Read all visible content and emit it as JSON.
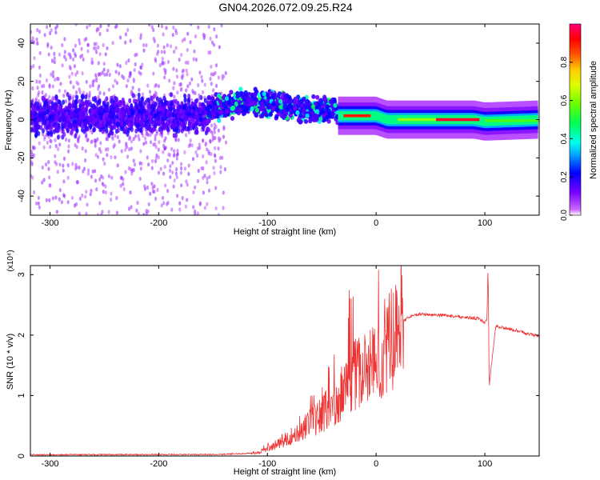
{
  "title": "GN04.2026.072.09.25.R24",
  "chart_data": [
    {
      "type": "heatmap",
      "description_of_fill": "spectrogram of frequency vs straight-line height",
      "xlabel": "Height of straight line (km)",
      "ylabel": "Frequency (Hz)",
      "xlim": [
        -318,
        150
      ],
      "ylim": [
        -50,
        50
      ],
      "xticks": [
        -300,
        -200,
        -100,
        0,
        100
      ],
      "yticks": [
        -40,
        -20,
        0,
        20,
        40
      ],
      "colorbar": {
        "label": "Normalized spectral amplitude",
        "range": [
          0,
          1
        ],
        "ticks": [
          0,
          0.2,
          0.4,
          0.6,
          0.8
        ],
        "tick_labels": [
          "0.0",
          "0.2",
          "0.4",
          "0.6",
          "0.8"
        ]
      },
      "ridge": {
        "x": [
          -155,
          -120,
          -100,
          -80,
          -60,
          -40,
          -35,
          -20,
          0,
          10,
          50,
          90,
          100,
          150
        ],
        "y": [
          5,
          9,
          8,
          7,
          5,
          5,
          2,
          2,
          2,
          0,
          0,
          0,
          -1,
          0
        ]
      }
    },
    {
      "type": "line",
      "xlabel": "Height of straight line (km)",
      "ylabel": "SNR (10 * v/v)",
      "y_multiplier": "(x10^4)",
      "xlim": [
        -318,
        150
      ],
      "ylim": [
        0,
        3.15
      ],
      "xticks": [
        -300,
        -200,
        -100,
        0,
        100
      ],
      "yticks": [
        0,
        1,
        2,
        3
      ],
      "color": "#ee3333",
      "envelope": {
        "x": [
          -318,
          -150,
          -120,
          -110,
          -100,
          -80,
          -60,
          -40,
          -30,
          -20,
          -10,
          0,
          10,
          20,
          30,
          40,
          60,
          80,
          95,
          100,
          102,
          103,
          104,
          110,
          130,
          150
        ],
        "y": [
          0.01,
          0.015,
          0.03,
          0.05,
          0.12,
          0.3,
          0.55,
          0.85,
          1.1,
          1.35,
          1.45,
          1.55,
          1.8,
          2.15,
          2.3,
          2.35,
          2.33,
          2.3,
          2.27,
          2.2,
          2.25,
          3.15,
          1.15,
          2.15,
          2.07,
          1.98
        ]
      }
    }
  ]
}
